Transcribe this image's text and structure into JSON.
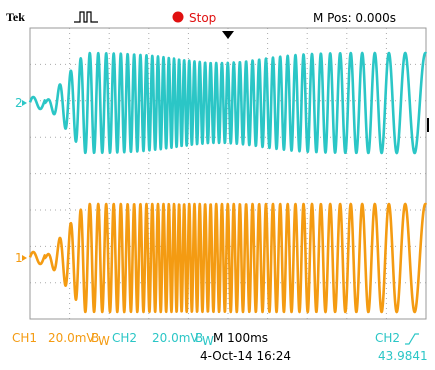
{
  "header": {
    "brand": "Tek",
    "status": "Stop",
    "position": "M Pos: 0.000s"
  },
  "channels": [
    {
      "marker": "2"
    },
    {
      "marker": "1"
    }
  ],
  "footer": {
    "ch1": {
      "name": "CH1",
      "scale": "20.0mV",
      "bw": [
        "B",
        "W"
      ]
    },
    "ch2": {
      "name": "CH2",
      "scale": "20.0mV",
      "bw": [
        "B",
        "W"
      ]
    },
    "timebase": "M 100ms",
    "date": "4-Oct-14 16:24",
    "trigger": {
      "source": "CH2",
      "frequency": "43.9841"
    }
  }
}
